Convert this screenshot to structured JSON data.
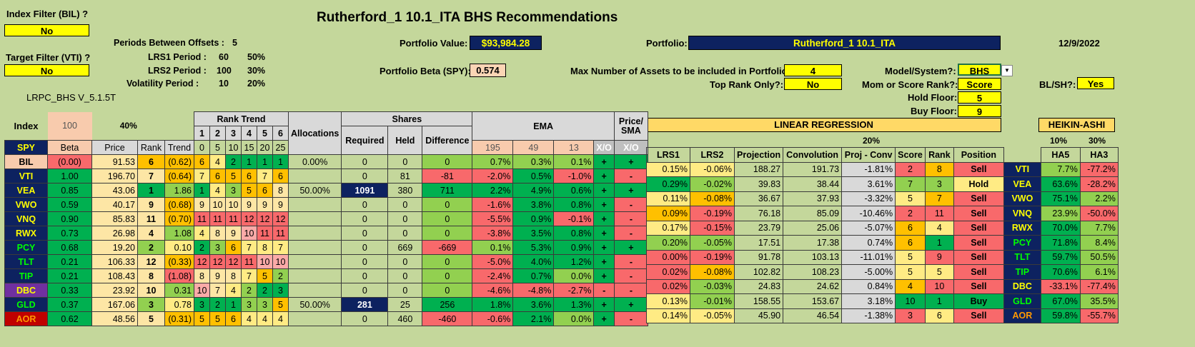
{
  "title": "Rutherford_1 10.1_ITA BHS Recommendations",
  "date": "12/9/2022",
  "index_filter": {
    "label": "Index Filter (BIL) ?",
    "value": "No"
  },
  "target_filter": {
    "label": "Target Filter (VTI) ?",
    "value": "No"
  },
  "version": "LRPC_BHS V_5.1.5T",
  "params": {
    "periods_label": "Periods Between Offsets :",
    "periods": "5",
    "lrs1_label": "LRS1 Period :",
    "lrs1": "60",
    "lrs1_pct": "50%",
    "lrs2_label": "LRS2 Period :",
    "lrs2": "100",
    "lrs2_pct": "30%",
    "vol_label": "Volatility Period :",
    "vol": "10",
    "vol_pct": "20%"
  },
  "portfolio_value": {
    "label": "Portfolio Value:",
    "value": "$93,984.28"
  },
  "portfolio_beta": {
    "label": "Portfolio Beta (SPY):",
    "value": "0.574"
  },
  "portfolio": {
    "label": "Portfolio:",
    "value": "Rutherford_1 10.1_ITA"
  },
  "max_assets": {
    "label": "Max Number of Assets to be included in Portfolio:",
    "value": "4"
  },
  "top_rank": {
    "label": "Top Rank Only?:",
    "value": "No"
  },
  "model": {
    "label": "Model/System?:",
    "value": "BHS"
  },
  "mom_score": {
    "label": "Mom or Score Rank?:",
    "value": "Score"
  },
  "hold_floor": {
    "label": "Hold Floor:",
    "value": "5"
  },
  "buy_floor": {
    "label": "Buy Floor:",
    "value": "9"
  },
  "blsh": {
    "label": "BL/SH?:",
    "value": "Yes"
  },
  "headers": {
    "index": "Index",
    "index_val": "100",
    "pct40": "40%",
    "rank_trend": "Rank Trend",
    "rt_nums": [
      "1",
      "2",
      "3",
      "4",
      "5",
      "6"
    ],
    "rt_periods": [
      "0",
      "5",
      "10",
      "15",
      "20",
      "25"
    ],
    "allocations": "Allocations",
    "shares": "Shares",
    "required": "Required",
    "held": "Held",
    "difference": "Difference",
    "ema": "EMA",
    "ema_periods": [
      "195",
      "49",
      "13"
    ],
    "xo": "X/O",
    "price_sma": "Price/ SMA",
    "xo2": "X/O",
    "spy": "SPY",
    "beta": "Beta",
    "price": "Price",
    "rank": "Rank",
    "trend": "Trend",
    "linreg": "LINEAR REGRESSION",
    "pct20": "20%",
    "heikin": "HEIKIN-ASHI",
    "ha_pct1": "10%",
    "ha_pct2": "30%",
    "lrs1": "LRS1",
    "lrs2": "LRS2",
    "projection": "Projection",
    "convolution": "Convolution",
    "projconv": "Proj - Conv",
    "score": "Score",
    "rank2": "Rank",
    "position": "Position",
    "ha5": "HA5",
    "ha3": "HA3"
  },
  "rows": [
    {
      "tk": "BIL",
      "beta": "(0.00)",
      "price": "91.53",
      "rank": "6",
      "trend": "(0.62)",
      "rt": [
        "6",
        "4",
        "2",
        "1",
        "1",
        "1"
      ],
      "alloc": "0.00%",
      "req": "0",
      "held": "0",
      "diff": "0",
      "e195": "0.7%",
      "e49": "0.3%",
      "e13": "0.1%",
      "xo": "+",
      "psma": "+",
      "lrs1": "",
      "lrs2": "",
      "proj": "",
      "conv": "",
      "pc": "",
      "score": "",
      "rank2": "",
      "pos": "",
      "tk2": "",
      "ha5": "",
      "ha3": ""
    },
    {
      "tk": "VTI",
      "beta": "1.00",
      "price": "196.70",
      "rank": "7",
      "trend": "(0.64)",
      "rt": [
        "7",
        "6",
        "5",
        "6",
        "7",
        "6"
      ],
      "alloc": "",
      "req": "0",
      "held": "81",
      "diff": "-81",
      "e195": "-2.0%",
      "e49": "0.5%",
      "e13": "-1.0%",
      "xo": "+",
      "psma": "-",
      "lrs1": "0.15%",
      "lrs2": "-0.06%",
      "proj": "188.27",
      "conv": "191.73",
      "pc": "-1.81%",
      "score": "2",
      "rank2": "8",
      "pos": "Sell",
      "tk2": "VTI",
      "ha5": "7.7%",
      "ha3": "-77.2%"
    },
    {
      "tk": "VEA",
      "beta": "0.85",
      "price": "43.06",
      "rank": "1",
      "trend": "1.86",
      "rt": [
        "1",
        "4",
        "3",
        "5",
        "6",
        "8"
      ],
      "alloc": "50.00%",
      "req": "1091",
      "held": "380",
      "diff": "711",
      "e195": "2.2%",
      "e49": "4.9%",
      "e13": "0.6%",
      "xo": "+",
      "psma": "+",
      "lrs1": "0.29%",
      "lrs2": "-0.02%",
      "proj": "39.83",
      "conv": "38.44",
      "pc": "3.61%",
      "score": "7",
      "rank2": "3",
      "pos": "Hold",
      "tk2": "VEA",
      "ha5": "63.6%",
      "ha3": "-28.2%"
    },
    {
      "tk": "VWO",
      "beta": "0.59",
      "price": "40.17",
      "rank": "9",
      "trend": "(0.68)",
      "rt": [
        "9",
        "10",
        "10",
        "9",
        "9",
        "9"
      ],
      "alloc": "",
      "req": "0",
      "held": "0",
      "diff": "0",
      "e195": "-1.6%",
      "e49": "3.8%",
      "e13": "0.8%",
      "xo": "+",
      "psma": "-",
      "lrs1": "0.11%",
      "lrs2": "-0.08%",
      "proj": "36.67",
      "conv": "37.93",
      "pc": "-3.32%",
      "score": "5",
      "rank2": "7",
      "pos": "Sell",
      "tk2": "VWO",
      "ha5": "75.1%",
      "ha3": "2.2%"
    },
    {
      "tk": "VNQ",
      "beta": "0.90",
      "price": "85.83",
      "rank": "11",
      "trend": "(0.70)",
      "rt": [
        "11",
        "11",
        "11",
        "12",
        "12",
        "12"
      ],
      "alloc": "",
      "req": "0",
      "held": "0",
      "diff": "0",
      "e195": "-5.5%",
      "e49": "0.9%",
      "e13": "-0.1%",
      "xo": "+",
      "psma": "-",
      "lrs1": "0.09%",
      "lrs2": "-0.19%",
      "proj": "76.18",
      "conv": "85.09",
      "pc": "-10.46%",
      "score": "2",
      "rank2": "11",
      "pos": "Sell",
      "tk2": "VNQ",
      "ha5": "23.9%",
      "ha3": "-50.0%"
    },
    {
      "tk": "RWX",
      "beta": "0.73",
      "price": "26.98",
      "rank": "4",
      "trend": "1.08",
      "rt": [
        "4",
        "8",
        "9",
        "10",
        "11",
        "11"
      ],
      "alloc": "",
      "req": "0",
      "held": "0",
      "diff": "0",
      "e195": "-3.8%",
      "e49": "3.5%",
      "e13": "0.8%",
      "xo": "+",
      "psma": "-",
      "lrs1": "0.17%",
      "lrs2": "-0.15%",
      "proj": "23.79",
      "conv": "25.06",
      "pc": "-5.07%",
      "score": "6",
      "rank2": "4",
      "pos": "Sell",
      "tk2": "RWX",
      "ha5": "70.0%",
      "ha3": "7.7%"
    },
    {
      "tk": "PCY",
      "beta": "0.68",
      "price": "19.20",
      "rank": "2",
      "trend": "0.10",
      "rt": [
        "2",
        "3",
        "6",
        "7",
        "8",
        "7"
      ],
      "alloc": "",
      "req": "0",
      "held": "669",
      "diff": "-669",
      "e195": "0.1%",
      "e49": "5.3%",
      "e13": "0.9%",
      "xo": "+",
      "psma": "+",
      "lrs1": "0.20%",
      "lrs2": "-0.05%",
      "proj": "17.51",
      "conv": "17.38",
      "pc": "0.74%",
      "score": "6",
      "rank2": "1",
      "pos": "Sell",
      "tk2": "PCY",
      "ha5": "71.8%",
      "ha3": "8.4%"
    },
    {
      "tk": "TLT",
      "beta": "0.21",
      "price": "106.33",
      "rank": "12",
      "trend": "(0.33)",
      "rt": [
        "12",
        "12",
        "12",
        "11",
        "10",
        "10"
      ],
      "alloc": "",
      "req": "0",
      "held": "0",
      "diff": "0",
      "e195": "-5.0%",
      "e49": "4.0%",
      "e13": "1.2%",
      "xo": "+",
      "psma": "-",
      "lrs1": "0.00%",
      "lrs2": "-0.19%",
      "proj": "91.78",
      "conv": "103.13",
      "pc": "-11.01%",
      "score": "5",
      "rank2": "9",
      "pos": "Sell",
      "tk2": "TLT",
      "ha5": "59.7%",
      "ha3": "50.5%"
    },
    {
      "tk": "TIP",
      "beta": "0.21",
      "price": "108.43",
      "rank": "8",
      "trend": "(1.08)",
      "rt": [
        "8",
        "9",
        "8",
        "7",
        "5",
        "2"
      ],
      "alloc": "",
      "req": "0",
      "held": "0",
      "diff": "0",
      "e195": "-2.4%",
      "e49": "0.7%",
      "e13": "0.0%",
      "xo": "+",
      "psma": "-",
      "lrs1": "0.02%",
      "lrs2": "-0.08%",
      "proj": "102.82",
      "conv": "108.23",
      "pc": "-5.00%",
      "score": "5",
      "rank2": "5",
      "pos": "Sell",
      "tk2": "TIP",
      "ha5": "70.6%",
      "ha3": "6.1%"
    },
    {
      "tk": "DBC",
      "beta": "0.33",
      "price": "23.92",
      "rank": "10",
      "trend": "0.31",
      "rt": [
        "10",
        "7",
        "4",
        "2",
        "2",
        "3"
      ],
      "alloc": "",
      "req": "0",
      "held": "0",
      "diff": "0",
      "e195": "-4.6%",
      "e49": "-4.8%",
      "e13": "-2.7%",
      "xo": "-",
      "psma": "-",
      "lrs1": "0.02%",
      "lrs2": "-0.03%",
      "proj": "24.83",
      "conv": "24.62",
      "pc": "0.84%",
      "score": "4",
      "rank2": "10",
      "pos": "Sell",
      "tk2": "DBC",
      "ha5": "-33.1%",
      "ha3": "-77.4%"
    },
    {
      "tk": "GLD",
      "beta": "0.37",
      "price": "167.06",
      "rank": "3",
      "trend": "0.78",
      "rt": [
        "3",
        "2",
        "1",
        "3",
        "3",
        "5"
      ],
      "alloc": "50.00%",
      "req": "281",
      "held": "25",
      "diff": "256",
      "e195": "1.8%",
      "e49": "3.6%",
      "e13": "1.3%",
      "xo": "+",
      "psma": "+",
      "lrs1": "0.13%",
      "lrs2": "-0.01%",
      "proj": "158.55",
      "conv": "153.67",
      "pc": "3.18%",
      "score": "10",
      "rank2": "1",
      "pos": "Buy",
      "tk2": "GLD",
      "ha5": "67.0%",
      "ha3": "35.5%"
    },
    {
      "tk": "AOR",
      "beta": "0.62",
      "price": "48.56",
      "rank": "5",
      "trend": "(0.31)",
      "rt": [
        "5",
        "5",
        "6",
        "4",
        "4",
        "4"
      ],
      "alloc": "",
      "req": "0",
      "held": "460",
      "diff": "-460",
      "e195": "-0.6%",
      "e49": "2.1%",
      "e13": "0.0%",
      "xo": "+",
      "psma": "-",
      "lrs1": "0.14%",
      "lrs2": "-0.05%",
      "proj": "45.90",
      "conv": "46.54",
      "pc": "-1.38%",
      "score": "3",
      "rank2": "6",
      "pos": "Sell",
      "tk2": "AOR",
      "ha5": "59.8%",
      "ha3": "-55.7%"
    }
  ],
  "colors": {
    "tickers": [
      "#ffff00",
      "#ffff00",
      "#ffff00",
      "#ffff00",
      "#ffff00",
      "#ffff00",
      "#00ff00",
      "#00ff00",
      "#00ff00",
      "#ffff00",
      "#00ff00",
      "#ff9900"
    ],
    "ticker_bg": [
      "#f8cbad",
      "#0d2260",
      "#0d2260",
      "#0d2260",
      "#0d2260",
      "#0d2260",
      "#0d2260",
      "#0d2260",
      "#0d2260",
      "#7030a0",
      "#0d2260",
      "#c00000"
    ],
    "beta": [
      "red",
      "g",
      "g",
      "g",
      "g",
      "g",
      "g",
      "g",
      "g",
      "g",
      "g",
      "g"
    ],
    "price": [
      "lt",
      "lt",
      "lt",
      "lt",
      "lt",
      "lt",
      "lt",
      "lt",
      "lt",
      "lt",
      "lt",
      "lt"
    ],
    "rank": [
      "or",
      "lt",
      "g",
      "lt",
      "lt",
      "lt",
      "lg",
      "lt",
      "lt",
      "lt",
      "lg",
      "lt"
    ],
    "trend": [
      "or",
      "or",
      "lg",
      "or",
      "or",
      "lg",
      "yl",
      "or",
      "red",
      "lg",
      "yl",
      "or"
    ],
    "rt": [
      [
        "or",
        "yl",
        "g",
        "g",
        "g",
        "g"
      ],
      [
        "yl",
        "or",
        "or",
        "or",
        "yl",
        "or"
      ],
      [
        "g",
        "yl",
        "lg",
        "or",
        "or",
        "lt"
      ],
      [
        "lt",
        "lt",
        "lt",
        "lt",
        "lt",
        "lt"
      ],
      [
        "red",
        "red",
        "red",
        "red",
        "red",
        "red"
      ],
      [
        "yl",
        "lt",
        "lt",
        "pink",
        "red",
        "red"
      ],
      [
        "g",
        "lg",
        "or",
        "yl",
        "yl",
        "yl"
      ],
      [
        "red",
        "red",
        "red",
        "red",
        "pink",
        "pink"
      ],
      [
        "lt",
        "lt",
        "lt",
        "yl",
        "or",
        "lg"
      ],
      [
        "pink",
        "lt",
        "yl",
        "lg",
        "g",
        "g"
      ],
      [
        "g",
        "g",
        "g",
        "lg",
        "lg",
        "or"
      ],
      [
        "or",
        "or",
        "or",
        "yl",
        "yl",
        "yl"
      ]
    ],
    "diff": [
      "lg",
      "red",
      "g",
      "lg",
      "lg",
      "lg",
      "red",
      "lg",
      "lg",
      "lg",
      "g",
      "red"
    ],
    "e195": [
      "lg",
      "red",
      "g",
      "red",
      "red",
      "red",
      "lg",
      "red",
      "red",
      "red",
      "g",
      "red"
    ],
    "e49": [
      "lg",
      "g",
      "g",
      "g",
      "g",
      "g",
      "g",
      "g",
      "g",
      "red",
      "g",
      "g"
    ],
    "e13": [
      "lg",
      "red",
      "g",
      "g",
      "red",
      "g",
      "g",
      "g",
      "lg",
      "red",
      "g",
      "lg"
    ],
    "xo": [
      "g",
      "g",
      "g",
      "g",
      "g",
      "g",
      "g",
      "g",
      "g",
      "red",
      "g",
      "g"
    ],
    "psma": [
      "g",
      "red",
      "g",
      "red",
      "red",
      "red",
      "g",
      "red",
      "red",
      "red",
      "g",
      "red"
    ],
    "lrs1": [
      "",
      "yl",
      "g",
      "yl",
      "or",
      "yl",
      "lg",
      "red",
      "red",
      "red",
      "yl",
      "yl"
    ],
    "lrs2": [
      "",
      "yl",
      "lg",
      "or",
      "red",
      "red",
      "lg",
      "red",
      "or",
      "lg",
      "lg",
      "yl"
    ],
    "pc": [
      "",
      "gry",
      "gry",
      "gry",
      "gry",
      "gry",
      "gry",
      "gry",
      "gry",
      "gry",
      "gry",
      "gry"
    ],
    "score": [
      "",
      "red",
      "lg",
      "yl",
      "red",
      "or",
      "or",
      "yl",
      "yl",
      "or",
      "g",
      "red"
    ],
    "rank2": [
      "",
      "or",
      "lg",
      "or",
      "red",
      "yl",
      "g",
      "red",
      "yl",
      "red",
      "g",
      "yl"
    ],
    "pos": [
      "",
      "red",
      "yl",
      "red",
      "red",
      "red",
      "red",
      "red",
      "red",
      "red",
      "g",
      "red"
    ],
    "ha5": [
      "",
      "lg",
      "g",
      "g",
      "lg",
      "g",
      "g",
      "g",
      "g",
      "red",
      "g",
      "g"
    ],
    "ha3": [
      "",
      "red",
      "red",
      "lg",
      "red",
      "lg",
      "lg",
      "lg",
      "lg",
      "red",
      "lg",
      "red"
    ]
  }
}
